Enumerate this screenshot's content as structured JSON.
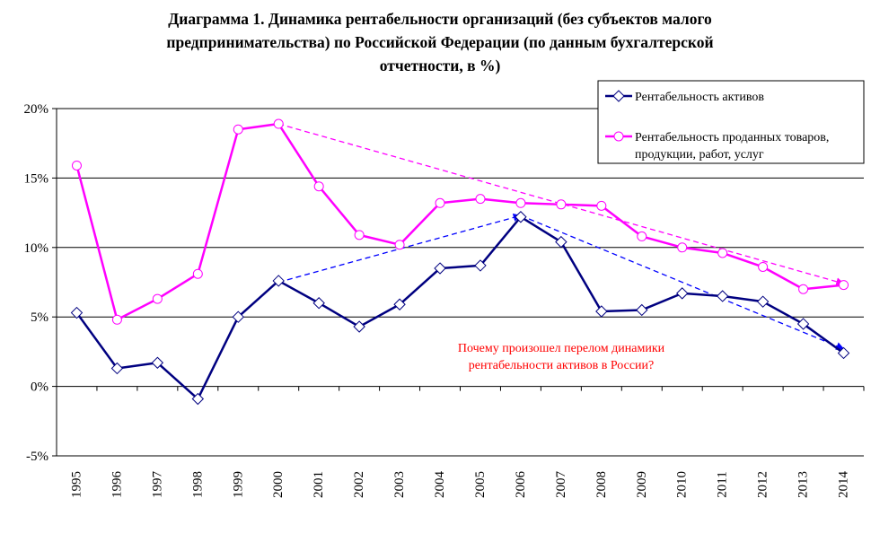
{
  "chart_data": {
    "type": "line",
    "title_lines": [
      "Диаграмма 1. Динамика рентабельности организаций (без субъектов малого",
      "предпринимательства) по Российской Федерации (по данным бухгалтерской",
      "отчетности, в %)"
    ],
    "categories": [
      "1995",
      "1996",
      "1997",
      "1998",
      "1999",
      "2000",
      "2001",
      "2002",
      "2003",
      "2004",
      "2005",
      "2006",
      "2007",
      "2008",
      "2009",
      "2010",
      "2011",
      "2012",
      "2013",
      "2014"
    ],
    "ylim": [
      -5,
      20
    ],
    "yticks": [
      -5,
      0,
      5,
      10,
      15,
      20
    ],
    "ytick_labels": [
      "-5%",
      "0%",
      "5%",
      "10%",
      "15%",
      "20%"
    ],
    "grid": "horizontal",
    "legend_position": "top-right",
    "series": [
      {
        "name": "Рентабельность активов",
        "legend_lines": [
          "Рентабельность активов"
        ],
        "color": "#000080",
        "marker": "diamond",
        "values": [
          5.3,
          1.3,
          1.7,
          -0.9,
          5.0,
          7.6,
          6.0,
          4.3,
          5.9,
          8.5,
          8.7,
          12.2,
          10.4,
          5.4,
          5.5,
          6.7,
          6.5,
          6.1,
          4.5,
          2.4
        ]
      },
      {
        "name": "Рентабельность проданных товаров, продукции, работ, услуг",
        "legend_lines": [
          "Рентабельность проданных товаров,",
          "продукции, работ, услуг"
        ],
        "color": "#ff00ff",
        "marker": "circle",
        "values": [
          15.9,
          4.8,
          6.3,
          8.1,
          18.5,
          18.9,
          14.4,
          10.9,
          10.2,
          13.2,
          13.5,
          13.2,
          13.1,
          13.0,
          10.8,
          10.0,
          9.6,
          8.6,
          7.0,
          7.3
        ]
      }
    ],
    "trend_lines": [
      {
        "from": {
          "x": "2000",
          "y": 18.9
        },
        "to": {
          "x": "2014",
          "y": 7.4
        },
        "color": "#ff00ff",
        "style": "dashed",
        "arrow": true
      },
      {
        "from": {
          "x": "2000",
          "y": 7.5
        },
        "to": {
          "x": "2006",
          "y": 12.3
        },
        "color": "#0000ff",
        "style": "dashed",
        "arrow": true
      },
      {
        "from": {
          "x": "2006",
          "y": 12.3
        },
        "to": {
          "x": "2014",
          "y": 2.7
        },
        "color": "#0000ff",
        "style": "dashed",
        "arrow": true
      }
    ],
    "annotation": {
      "lines": [
        "Почему произошел перелом динамики",
        "рентабельности активов в России?"
      ],
      "color": "#ff0000"
    }
  }
}
